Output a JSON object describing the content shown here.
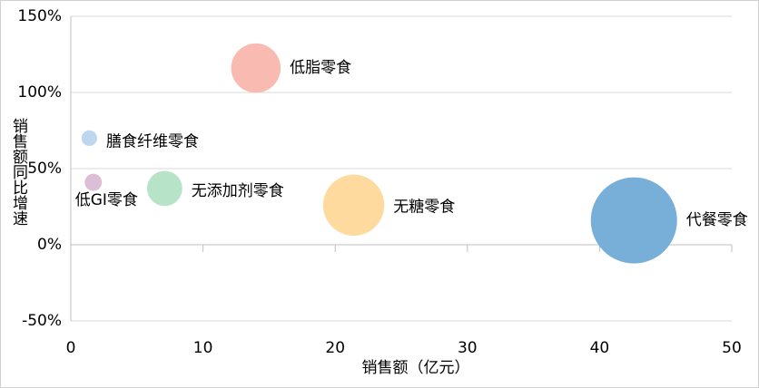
{
  "chart_data": {
    "type": "bubble",
    "x_label": "销售额（亿元）",
    "y_label": "销售额同比增速",
    "series": [
      {
        "name": "低脂零食",
        "color": "#f9bbb1",
        "x": [
          14
        ],
        "values": [
          116
        ]
      },
      {
        "name": "膳食纤维零食",
        "color": "#bdd7ee",
        "x": [
          1.4
        ],
        "values": [
          70
        ]
      },
      {
        "name": "低GI零食",
        "color": "#dcbfd7",
        "x": [
          1.7
        ],
        "values": [
          41
        ]
      },
      {
        "name": "无添加剂零食",
        "color": "#b7e3c9",
        "x": [
          7.1
        ],
        "values": [
          37
        ]
      },
      {
        "name": "无糖零食",
        "color": "#ffda9e",
        "x": [
          21.4
        ],
        "values": [
          26
        ]
      },
      {
        "name": "代餐零食",
        "color": "#78afd9",
        "x": [
          42.6
        ],
        "values": [
          16
        ]
      }
    ],
    "xlim": [
      0,
      50
    ],
    "xticks": [
      0,
      10,
      20,
      30,
      40,
      50
    ],
    "ylim": [
      -50,
      150
    ],
    "yticks": [
      {
        "value": -50,
        "label": "-50%"
      },
      {
        "value": 0,
        "label": "0%"
      },
      {
        "value": 50,
        "label": "50%"
      },
      {
        "value": 100,
        "label": "100%"
      },
      {
        "value": 150,
        "label": "150%"
      }
    ],
    "grid": true
  }
}
